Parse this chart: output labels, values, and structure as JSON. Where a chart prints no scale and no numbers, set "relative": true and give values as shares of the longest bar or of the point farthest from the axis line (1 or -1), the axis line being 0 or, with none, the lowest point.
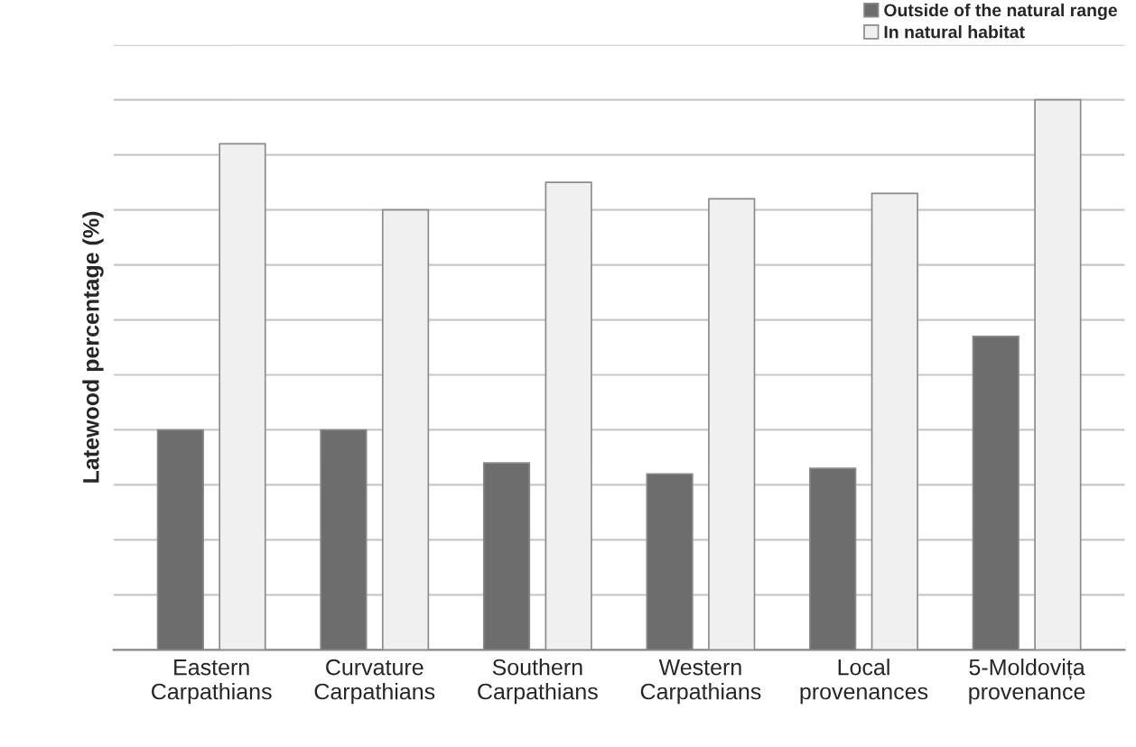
{
  "chart_data": {
    "type": "bar",
    "ylabel": "Latewood percentage (%)",
    "relative": true,
    "grid": "y",
    "legend": "top right",
    "categories": [
      "Eastern\nCarpathians",
      "Curvature\nCarpathians",
      "Southern\nCarpathians",
      "Western\nCarpathians",
      "Local\nprovenances",
      "5-Moldovița\nprovenance"
    ],
    "series": [
      {
        "name": "Outside of the natural range",
        "color": "#6d6d6d",
        "values": [
          0.4,
          0.4,
          0.34,
          0.32,
          0.33,
          0.57
        ]
      },
      {
        "name": "In natural habitat",
        "color": "#f0f0f0",
        "values": [
          0.92,
          0.8,
          0.85,
          0.82,
          0.83,
          1.0
        ]
      }
    ]
  }
}
